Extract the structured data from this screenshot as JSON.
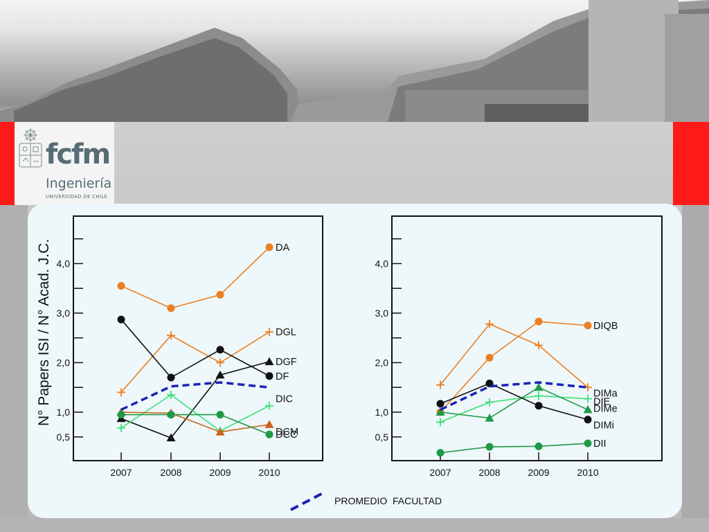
{
  "institution": {
    "logo_text": "fcfm",
    "subtitle": "Ingeniería",
    "university": "UNIVERSIDAD DE CHILE"
  },
  "colors": {
    "brand_red": "#ff1a1a",
    "orange": "#ec7f22",
    "black": "#111111",
    "green_light": "#3de07a",
    "green_dark": "#1e9a47",
    "brown": "#c8651b",
    "average_blue": "#1a22b8"
  },
  "legend": {
    "average_label": "PROMEDIO  FACULTAD"
  },
  "chart_data": [
    {
      "type": "line",
      "ylabel": "N° Papers ISI / N° Acad. J.C.",
      "xlabel": "",
      "categories": [
        "2007",
        "2008",
        "2009",
        "2010"
      ],
      "ylim": [
        0,
        4.6
      ],
      "yticks_labeled": [
        "0,5",
        "1,0",
        "2,0",
        "3,0",
        "4,0"
      ],
      "ytick_values": [
        0.5,
        1.0,
        2.0,
        3.0,
        4.0
      ],
      "series": [
        {
          "name": "DA",
          "color": "#ec7f22",
          "marker": "circle",
          "values": [
            3.55,
            3.1,
            3.37,
            4.33
          ]
        },
        {
          "name": "DGL",
          "color": "#ec7f22",
          "marker": "plus",
          "values": [
            1.4,
            2.55,
            2.0,
            2.62
          ]
        },
        {
          "name": "DGF",
          "color": "#111111",
          "marker": "triangle",
          "values": [
            0.87,
            0.48,
            1.75,
            2.02
          ]
        },
        {
          "name": "DF",
          "color": "#111111",
          "marker": "circle",
          "values": [
            2.87,
            1.7,
            2.26,
            1.73
          ]
        },
        {
          "name": "DIC",
          "color": "#3de07a",
          "marker": "plus",
          "values": [
            0.68,
            1.35,
            0.62,
            1.13
          ]
        },
        {
          "name": "DCM",
          "color": "#c8651b",
          "marker": "triangle",
          "values": [
            1.0,
            0.98,
            0.6,
            0.75
          ]
        },
        {
          "name": "DCC",
          "color": "#1e9a47",
          "marker": "circle",
          "values": [
            0.95,
            0.95,
            0.95,
            0.55
          ]
        },
        {
          "name": "PROMEDIO  FACULTAD",
          "color": "#1a22b8",
          "marker": "none",
          "dashed": true,
          "label_hidden": true,
          "values": [
            1.05,
            1.52,
            1.6,
            1.5
          ]
        }
      ]
    },
    {
      "type": "line",
      "ylabel": "",
      "xlabel": "",
      "categories": [
        "2007",
        "2008",
        "2009",
        "2010"
      ],
      "ylim": [
        0,
        4.6
      ],
      "yticks_labeled": [
        "0,5",
        "1,0",
        "2,0",
        "3,0",
        "4,0"
      ],
      "ytick_values": [
        0.5,
        1.0,
        2.0,
        3.0,
        4.0
      ],
      "series": [
        {
          "name": "DIQB",
          "color": "#ec7f22",
          "marker": "circle",
          "values": [
            1.0,
            2.1,
            2.83,
            2.75
          ]
        },
        {
          "name": "DIMa",
          "color": "#ec7f22",
          "marker": "plus",
          "values": [
            1.55,
            2.78,
            2.35,
            1.5
          ]
        },
        {
          "name": "DIE",
          "color": "#3de07a",
          "marker": "plus",
          "values": [
            0.8,
            1.2,
            1.33,
            1.27
          ]
        },
        {
          "name": "DIMe",
          "color": "#1e9a47",
          "marker": "triangle",
          "values": [
            1.0,
            0.88,
            1.5,
            1.05
          ]
        },
        {
          "name": "DIMi",
          "color": "#111111",
          "marker": "circle",
          "values": [
            1.17,
            1.58,
            1.13,
            0.85
          ]
        },
        {
          "name": "DII",
          "color": "#1e9a47",
          "marker": "circle",
          "values": [
            0.18,
            0.3,
            0.31,
            0.37
          ]
        },
        {
          "name": "PROMEDIO  FACULTAD",
          "color": "#1a22b8",
          "marker": "none",
          "dashed": true,
          "label_hidden": true,
          "values": [
            1.05,
            1.52,
            1.6,
            1.5
          ]
        }
      ]
    }
  ]
}
